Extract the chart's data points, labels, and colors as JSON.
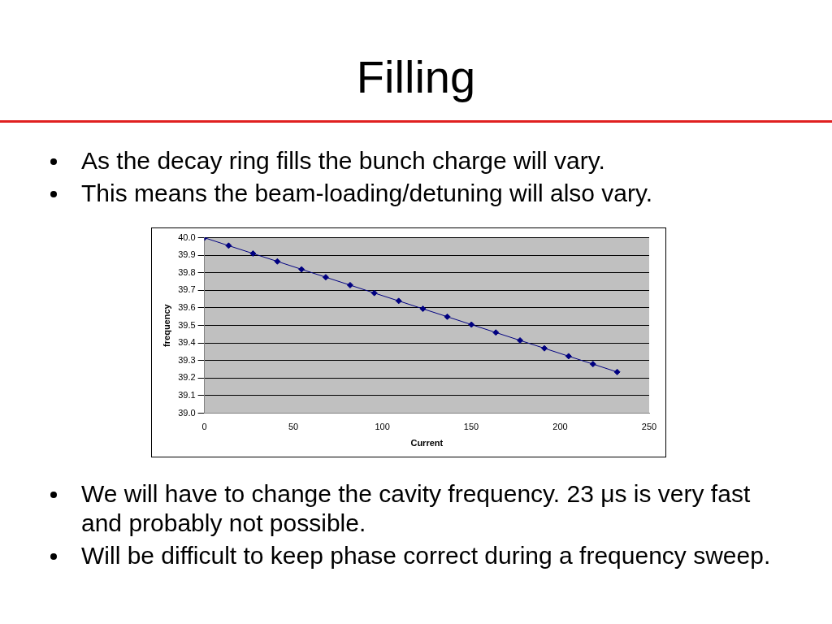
{
  "chart_data": {
    "type": "line",
    "title": "Filling",
    "annotations": [
      "As the decay ring fills the bunch charge will vary.",
      "This means the beam-loading/detuning will also vary.",
      "We will have to change the cavity frequency. 23 μs is very fast and probably not possible.",
      "Will be difficult to keep phase correct during a frequency sweep."
    ],
    "xlabel": "Current",
    "ylabel": "frequency",
    "x": [
      0,
      13.6,
      27.3,
      41,
      54.6,
      68.2,
      81.9,
      95.5,
      109.2,
      122.8,
      136.5,
      150.1,
      163.8,
      177.4,
      191.1,
      204.7,
      218.4,
      232
    ],
    "series": [
      {
        "color": "#000080",
        "values": [
          40.0,
          39.955,
          39.91,
          39.865,
          39.82,
          39.775,
          39.73,
          39.685,
          39.64,
          39.595,
          39.55,
          39.505,
          39.46,
          39.415,
          39.37,
          39.325,
          39.28,
          39.235
        ]
      }
    ],
    "xlim": [
      0,
      250
    ],
    "xticks": [
      0,
      50,
      100,
      150,
      200,
      250
    ],
    "ylim": [
      39.0,
      40.0
    ],
    "yticks": [
      {
        "value": 39.0,
        "label": "39.0"
      },
      {
        "value": 39.1,
        "label": "39.1"
      },
      {
        "value": 39.2,
        "label": "39.2"
      },
      {
        "value": 39.3,
        "label": "39.3"
      },
      {
        "value": 39.4,
        "label": "39.4"
      },
      {
        "value": 39.5,
        "label": "39.5"
      },
      {
        "value": 39.6,
        "label": "39.6"
      },
      {
        "value": 39.7,
        "label": "39.7"
      },
      {
        "value": 39.8,
        "label": "39.8"
      },
      {
        "value": 39.9,
        "label": "39.9"
      },
      {
        "value": 40.0,
        "label": "40.0"
      }
    ],
    "grid": "y",
    "legend": false,
    "marker": "diamond",
    "line_style": "solid"
  }
}
